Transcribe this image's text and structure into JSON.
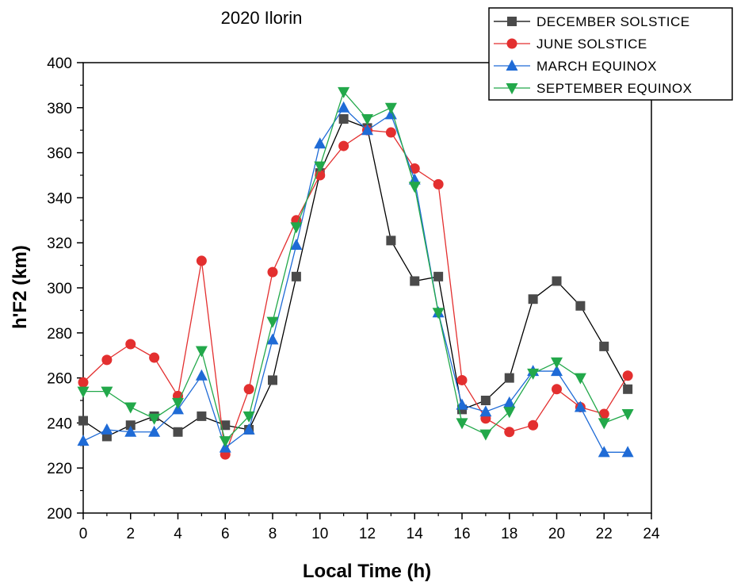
{
  "chart_data": {
    "type": "line",
    "title": "2020 Ilorin",
    "xlabel": "Local Time (h)",
    "ylabel": "h'F2 (km)",
    "xlim": [
      0,
      24
    ],
    "ylim": [
      200,
      400
    ],
    "xticks": [
      0,
      2,
      4,
      6,
      8,
      10,
      12,
      14,
      16,
      18,
      20,
      22,
      24
    ],
    "yticks": [
      200,
      220,
      240,
      260,
      280,
      300,
      320,
      340,
      360,
      380,
      400
    ],
    "grid": false,
    "legend_position": "top-right",
    "x": [
      0,
      1,
      2,
      3,
      4,
      5,
      6,
      7,
      8,
      9,
      10,
      11,
      12,
      13,
      14,
      15,
      16,
      17,
      18,
      19,
      20,
      21,
      22,
      23
    ],
    "series": [
      {
        "name": "DECEMBER SOLSTICE",
        "color": "#000000",
        "marker_color": "#4a4a4a",
        "marker": "square",
        "values": [
          241,
          234,
          239,
          243,
          236,
          243,
          239,
          237,
          259,
          305,
          351,
          375,
          371,
          321,
          303,
          305,
          246,
          250,
          260,
          295,
          303,
          292,
          274,
          255
        ]
      },
      {
        "name": "JUNE SOLSTICE",
        "color": "#e32f2f",
        "marker_color": "#e32f2f",
        "marker": "circle",
        "values": [
          258,
          268,
          275,
          269,
          252,
          312,
          226,
          255,
          307,
          330,
          350,
          363,
          370,
          369,
          353,
          346,
          259,
          242,
          236,
          239,
          255,
          247,
          244,
          261
        ]
      },
      {
        "name": "MARCH EQUINOX",
        "color": "#1f6bd6",
        "marker_color": "#1f6bd6",
        "marker": "triangle-up",
        "values": [
          232,
          237,
          236,
          236,
          246,
          261,
          229,
          237,
          277,
          319,
          364,
          380,
          370,
          377,
          348,
          289,
          248,
          245,
          249,
          263,
          263,
          247,
          227,
          227
        ]
      },
      {
        "name": "SEPTEMBER EQUINOX",
        "color": "#22a84a",
        "marker_color": "#22a84a",
        "marker": "triangle-down",
        "values": [
          254,
          254,
          247,
          242,
          249,
          272,
          232,
          243,
          285,
          327,
          354,
          387,
          375,
          380,
          345,
          289,
          240,
          235,
          245,
          262,
          267,
          260,
          240,
          244
        ]
      }
    ]
  }
}
